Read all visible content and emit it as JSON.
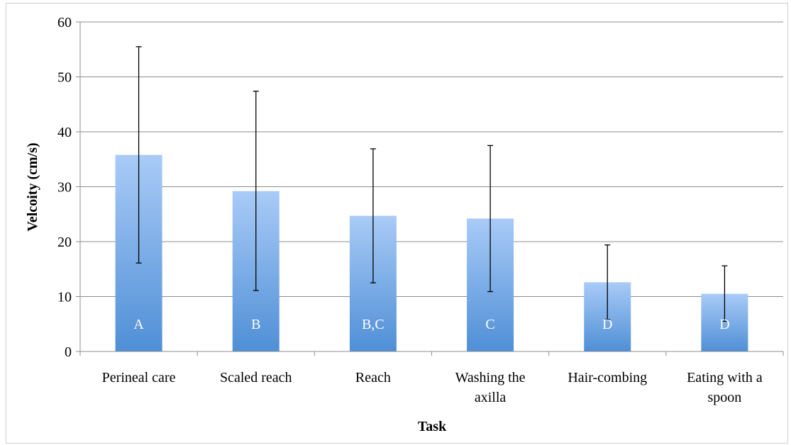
{
  "chart_data": {
    "type": "bar",
    "title": "",
    "xlabel": "Task",
    "ylabel": "Velcoity (cm/s)",
    "ylim": [
      0,
      60
    ],
    "yticks": [
      0,
      10,
      20,
      30,
      40,
      50,
      60
    ],
    "grid": true,
    "legend": "none",
    "categories": [
      [
        "Perineal care"
      ],
      [
        "Scaled reach"
      ],
      [
        "Reach"
      ],
      [
        "Washing the",
        "axilla"
      ],
      [
        "Hair-combing"
      ],
      [
        "Eating with a",
        "spoon"
      ]
    ],
    "values": [
      35.8,
      29.2,
      24.7,
      24.2,
      12.6,
      10.5
    ],
    "error_low": [
      16.1,
      11.1,
      12.5,
      10.9,
      5.8,
      5.5
    ],
    "error_high": [
      55.5,
      47.4,
      36.9,
      37.5,
      19.4,
      15.6
    ],
    "bar_labels": [
      "A",
      "B",
      "B,C",
      "C",
      "D",
      "D"
    ],
    "colors": {
      "bar_top": "#a9cbf7",
      "bar_bottom": "#4f8fd6",
      "grid": "#8c8c8c",
      "axis": "#8c8c8c",
      "error": "#000000"
    }
  }
}
